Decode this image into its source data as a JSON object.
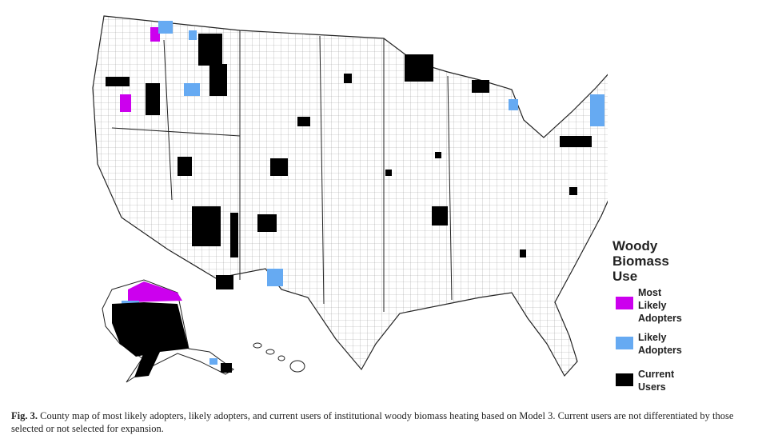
{
  "legend": {
    "title": "Woody Biomass Use",
    "items": [
      {
        "label": "Most Likely Adopters",
        "color": "#cc00ee"
      },
      {
        "label": "Likely Adopters",
        "color": "#66aaf2"
      },
      {
        "label": "Current Users",
        "color": "#000000"
      }
    ]
  },
  "caption": {
    "label": "Fig. 3.",
    "text": "County map of most likely adopters, likely adopters, and current users of institutional woody biomass heating based on Model 3. Current users are not differentiated by those selected or not selected for expansion."
  }
}
